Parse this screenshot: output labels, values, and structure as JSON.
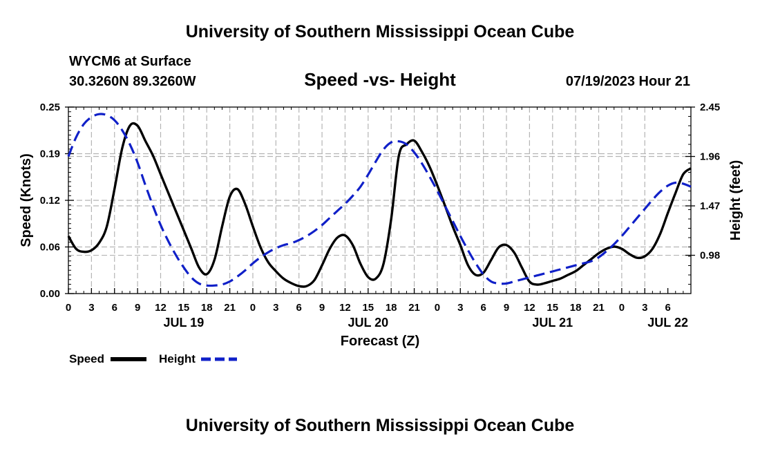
{
  "header": {
    "title": "University of Southern Mississippi Ocean Cube",
    "station": "WYCM6 at Surface",
    "coords": "30.3260N  89.3260W",
    "datetime": "07/19/2023 Hour 21"
  },
  "footer": {
    "title": "University of Southern Mississippi Ocean Cube"
  },
  "chart_data": {
    "type": "line",
    "title": "Speed -vs- Height",
    "xlabel": "Forecast (Z)",
    "ylabel_left": "Speed (Knots)",
    "ylabel_right": "Height (feet)",
    "x_range_hours": [
      0,
      81
    ],
    "ylim_left": [
      0,
      0.25
    ],
    "ylim_right": [
      0.6,
      2.45
    ],
    "yticks_left": [
      {
        "value": 0.0,
        "label": "0.00"
      },
      {
        "value": 0.0625,
        "label": "0.06"
      },
      {
        "value": 0.125,
        "label": "0.12"
      },
      {
        "value": 0.1875,
        "label": "0.19"
      },
      {
        "value": 0.25,
        "label": "0.25"
      }
    ],
    "yticks_right": [
      {
        "value": 0.98,
        "label": "0.98"
      },
      {
        "value": 1.47,
        "label": "1.47"
      },
      {
        "value": 1.96,
        "label": "1.96"
      },
      {
        "value": 2.45,
        "label": "2.45"
      }
    ],
    "xtick_labels": [
      "0",
      "3",
      "6",
      "9",
      "12",
      "15",
      "18",
      "21",
      "0",
      "3",
      "6",
      "9",
      "12",
      "15",
      "18",
      "21",
      "0",
      "3",
      "6",
      "9",
      "12",
      "15",
      "18",
      "21",
      "0",
      "3",
      "6"
    ],
    "date_labels": [
      {
        "hour": 15,
        "label": "JUL 19"
      },
      {
        "hour": 39,
        "label": "JUL 20"
      },
      {
        "hour": 63,
        "label": "JUL 21"
      },
      {
        "hour": 78,
        "label": "JUL 22"
      }
    ],
    "grid": true,
    "legend": {
      "position": "bottom-left"
    },
    "series": [
      {
        "name": "Speed",
        "axis": "left",
        "color": "#000000",
        "style": "solid",
        "points": [
          [
            0,
            0.077
          ],
          [
            1,
            0.06
          ],
          [
            2,
            0.056
          ],
          [
            3,
            0.058
          ],
          [
            4,
            0.068
          ],
          [
            5,
            0.09
          ],
          [
            6,
            0.14
          ],
          [
            7,
            0.195
          ],
          [
            8,
            0.225
          ],
          [
            9,
            0.225
          ],
          [
            10,
            0.205
          ],
          [
            11,
            0.185
          ],
          [
            12,
            0.16
          ],
          [
            13,
            0.135
          ],
          [
            14,
            0.11
          ],
          [
            15,
            0.085
          ],
          [
            16,
            0.06
          ],
          [
            17,
            0.035
          ],
          [
            18,
            0.026
          ],
          [
            19,
            0.045
          ],
          [
            20,
            0.09
          ],
          [
            21,
            0.13
          ],
          [
            22,
            0.14
          ],
          [
            23,
            0.12
          ],
          [
            24,
            0.09
          ],
          [
            25,
            0.062
          ],
          [
            26,
            0.042
          ],
          [
            27,
            0.03
          ],
          [
            28,
            0.02
          ],
          [
            29,
            0.014
          ],
          [
            30,
            0.01
          ],
          [
            31,
            0.01
          ],
          [
            32,
            0.018
          ],
          [
            33,
            0.038
          ],
          [
            34,
            0.06
          ],
          [
            35,
            0.075
          ],
          [
            36,
            0.078
          ],
          [
            37,
            0.065
          ],
          [
            38,
            0.04
          ],
          [
            39,
            0.022
          ],
          [
            40,
            0.02
          ],
          [
            41,
            0.04
          ],
          [
            42,
            0.1
          ],
          [
            43,
            0.185
          ],
          [
            44,
            0.2
          ],
          [
            45,
            0.205
          ],
          [
            46,
            0.19
          ],
          [
            47,
            0.17
          ],
          [
            48,
            0.145
          ],
          [
            49,
            0.118
          ],
          [
            50,
            0.09
          ],
          [
            51,
            0.065
          ],
          [
            52,
            0.038
          ],
          [
            53,
            0.025
          ],
          [
            54,
            0.028
          ],
          [
            55,
            0.045
          ],
          [
            56,
            0.062
          ],
          [
            57,
            0.065
          ],
          [
            58,
            0.055
          ],
          [
            59,
            0.035
          ],
          [
            60,
            0.016
          ],
          [
            61,
            0.012
          ],
          [
            62,
            0.014
          ],
          [
            63,
            0.017
          ],
          [
            64,
            0.02
          ],
          [
            65,
            0.025
          ],
          [
            66,
            0.03
          ],
          [
            67,
            0.038
          ],
          [
            68,
            0.046
          ],
          [
            69,
            0.054
          ],
          [
            70,
            0.06
          ],
          [
            71,
            0.063
          ],
          [
            72,
            0.06
          ],
          [
            73,
            0.053
          ],
          [
            74,
            0.048
          ],
          [
            75,
            0.05
          ],
          [
            76,
            0.06
          ],
          [
            77,
            0.08
          ],
          [
            78,
            0.108
          ],
          [
            79,
            0.135
          ],
          [
            80,
            0.16
          ],
          [
            81,
            0.168
          ]
        ]
      },
      {
        "name": "Height",
        "axis": "right",
        "color": "#1020c8",
        "style": "dashed",
        "points": [
          [
            0,
            1.96
          ],
          [
            1,
            2.15
          ],
          [
            2,
            2.28
          ],
          [
            3,
            2.35
          ],
          [
            4,
            2.38
          ],
          [
            5,
            2.37
          ],
          [
            6,
            2.32
          ],
          [
            7,
            2.22
          ],
          [
            8,
            2.08
          ],
          [
            9,
            1.9
          ],
          [
            10,
            1.68
          ],
          [
            11,
            1.47
          ],
          [
            12,
            1.28
          ],
          [
            13,
            1.12
          ],
          [
            14,
            0.98
          ],
          [
            15,
            0.86
          ],
          [
            16,
            0.76
          ],
          [
            17,
            0.7
          ],
          [
            18,
            0.68
          ],
          [
            19,
            0.68
          ],
          [
            20,
            0.69
          ],
          [
            21,
            0.72
          ],
          [
            22,
            0.77
          ],
          [
            23,
            0.83
          ],
          [
            24,
            0.9
          ],
          [
            25,
            0.96
          ],
          [
            26,
            1.01
          ],
          [
            27,
            1.05
          ],
          [
            28,
            1.08
          ],
          [
            29,
            1.1
          ],
          [
            30,
            1.13
          ],
          [
            31,
            1.17
          ],
          [
            32,
            1.22
          ],
          [
            33,
            1.28
          ],
          [
            34,
            1.35
          ],
          [
            35,
            1.42
          ],
          [
            36,
            1.49
          ],
          [
            37,
            1.57
          ],
          [
            38,
            1.66
          ],
          [
            39,
            1.78
          ],
          [
            40,
            1.91
          ],
          [
            41,
            2.03
          ],
          [
            42,
            2.1
          ],
          [
            43,
            2.11
          ],
          [
            44,
            2.08
          ],
          [
            45,
            2.0
          ],
          [
            46,
            1.89
          ],
          [
            47,
            1.76
          ],
          [
            48,
            1.62
          ],
          [
            49,
            1.47
          ],
          [
            50,
            1.32
          ],
          [
            51,
            1.17
          ],
          [
            52,
            1.03
          ],
          [
            53,
            0.9
          ],
          [
            54,
            0.79
          ],
          [
            55,
            0.72
          ],
          [
            56,
            0.7
          ],
          [
            57,
            0.7
          ],
          [
            58,
            0.72
          ],
          [
            59,
            0.74
          ],
          [
            60,
            0.76
          ],
          [
            61,
            0.78
          ],
          [
            62,
            0.8
          ],
          [
            63,
            0.82
          ],
          [
            64,
            0.84
          ],
          [
            65,
            0.86
          ],
          [
            66,
            0.88
          ],
          [
            67,
            0.9
          ],
          [
            68,
            0.92
          ],
          [
            69,
            0.96
          ],
          [
            70,
            1.02
          ],
          [
            71,
            1.09
          ],
          [
            72,
            1.17
          ],
          [
            73,
            1.26
          ],
          [
            74,
            1.35
          ],
          [
            75,
            1.44
          ],
          [
            76,
            1.53
          ],
          [
            77,
            1.61
          ],
          [
            78,
            1.67
          ],
          [
            79,
            1.7
          ],
          [
            80,
            1.69
          ],
          [
            81,
            1.66
          ]
        ]
      }
    ]
  }
}
